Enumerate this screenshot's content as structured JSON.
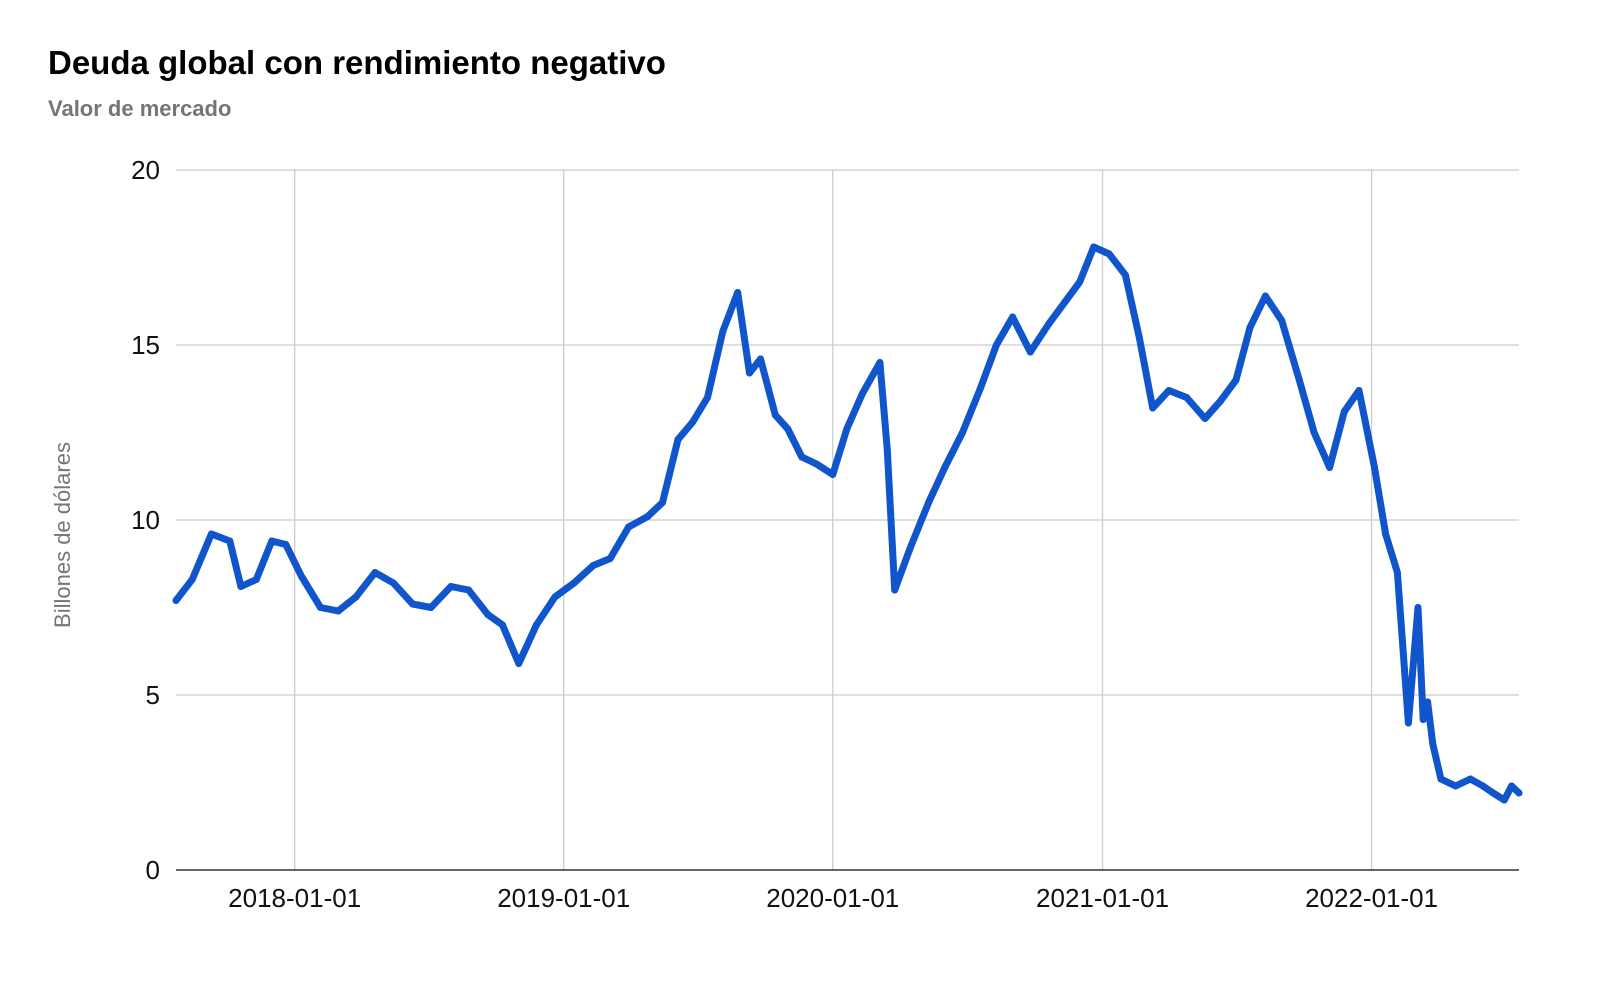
{
  "chart_data": {
    "type": "line",
    "title": "Deuda global con rendimiento negativo",
    "subtitle": "Valor de mercado",
    "xlabel": "",
    "ylabel": "Billones de dólares",
    "ylim": [
      0,
      20
    ],
    "y_ticks": [
      "0",
      "5",
      "10",
      "15",
      "20"
    ],
    "x_ticks": [
      "2018-01-01",
      "2019-01-01",
      "2020-01-01",
      "2021-01-01",
      "2022-01-01"
    ],
    "xlim": [
      "2017-07-24",
      "2022-07-20"
    ],
    "grid": true,
    "legend": "none",
    "series": [
      {
        "color": "#1155cc",
        "x": [
          "2017-07-24",
          "2017-08-15",
          "2017-09-10",
          "2017-10-05",
          "2017-10-20",
          "2017-11-10",
          "2017-12-01",
          "2017-12-20",
          "2018-01-10",
          "2018-02-05",
          "2018-03-01",
          "2018-03-25",
          "2018-04-20",
          "2018-05-15",
          "2018-06-10",
          "2018-07-05",
          "2018-08-01",
          "2018-08-25",
          "2018-09-20",
          "2018-10-10",
          "2018-11-01",
          "2018-11-25",
          "2018-12-20",
          "2019-01-15",
          "2019-02-10",
          "2019-03-05",
          "2019-03-30",
          "2019-04-25",
          "2019-05-15",
          "2019-06-05",
          "2019-06-25",
          "2019-07-15",
          "2019-08-05",
          "2019-08-25",
          "2019-09-10",
          "2019-09-25",
          "2019-10-15",
          "2019-11-01",
          "2019-11-20",
          "2019-12-10",
          "2020-01-01",
          "2020-01-20",
          "2020-02-10",
          "2020-03-05",
          "2020-03-15",
          "2020-03-25",
          "2020-04-15",
          "2020-05-10",
          "2020-06-01",
          "2020-06-25",
          "2020-07-20",
          "2020-08-10",
          "2020-09-01",
          "2020-09-25",
          "2020-10-20",
          "2020-11-10",
          "2020-12-01",
          "2020-12-20",
          "2021-01-10",
          "2021-02-01",
          "2021-02-20",
          "2021-03-10",
          "2021-04-01",
          "2021-04-25",
          "2021-05-20",
          "2021-06-10",
          "2021-07-01",
          "2021-07-20",
          "2021-08-10",
          "2021-09-01",
          "2021-09-25",
          "2021-10-15",
          "2021-11-05",
          "2021-11-25",
          "2021-12-15",
          "2022-01-05",
          "2022-01-20",
          "2022-02-05",
          "2022-02-20",
          "2022-03-05",
          "2022-03-12",
          "2022-03-18",
          "2022-03-25",
          "2022-04-05",
          "2022-04-25",
          "2022-05-15",
          "2022-06-01",
          "2022-06-15",
          "2022-06-30",
          "2022-07-10",
          "2022-07-20"
        ],
        "y": [
          7.7,
          8.3,
          9.6,
          9.4,
          8.1,
          8.3,
          9.4,
          9.3,
          8.4,
          7.5,
          7.4,
          7.8,
          8.5,
          8.2,
          7.6,
          7.5,
          8.1,
          8.0,
          7.3,
          7.0,
          5.9,
          7.0,
          7.8,
          8.2,
          8.7,
          8.9,
          9.8,
          10.1,
          10.5,
          12.3,
          12.8,
          13.5,
          15.4,
          16.5,
          14.2,
          14.6,
          13.0,
          12.6,
          11.8,
          11.6,
          11.3,
          12.6,
          13.6,
          14.5,
          12.0,
          8.0,
          9.2,
          10.5,
          11.5,
          12.5,
          13.8,
          15.0,
          15.8,
          14.8,
          15.6,
          16.2,
          16.8,
          17.8,
          17.6,
          17.0,
          15.2,
          13.2,
          13.7,
          13.5,
          12.9,
          13.4,
          14.0,
          15.5,
          16.4,
          15.7,
          14.0,
          12.5,
          11.5,
          13.1,
          13.7,
          11.5,
          9.6,
          8.5,
          4.2,
          7.5,
          4.3,
          4.8,
          3.6,
          2.6,
          2.4,
          2.6,
          2.4,
          2.2,
          2.0,
          2.4,
          2.2
        ]
      }
    ]
  }
}
